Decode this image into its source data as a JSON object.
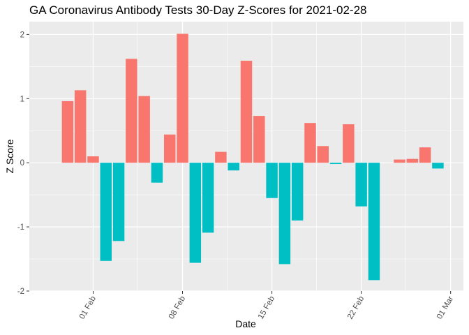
{
  "chart_data": {
    "type": "bar",
    "title": "GA Coronavirus Antibody Tests 30-Day Z-Scores for 2021-02-28",
    "xlabel": "Date",
    "ylabel": "Z Score",
    "ylim": [
      -2.0,
      2.2
    ],
    "y_ticks": [
      "-2",
      "-1",
      "0",
      "1",
      "2"
    ],
    "y_tick_values": [
      -2,
      -1,
      0,
      1,
      2
    ],
    "x_ticks": [
      "01 Feb",
      "08 Feb",
      "15 Feb",
      "22 Feb",
      "01 Mar"
    ],
    "x_tick_dates": [
      "2021-02-01",
      "2021-02-08",
      "2021-02-15",
      "2021-02-22",
      "2021-03-01"
    ],
    "xlim": [
      "2021-01-27",
      "2021-03-02"
    ],
    "grid": true,
    "legend": "none",
    "colors": {
      "positive": "#F8766D",
      "negative": "#00BFC4",
      "panel": "#EBEBEB",
      "grid": "#FFFFFF"
    },
    "x": [
      "2021-01-30",
      "2021-01-31",
      "2021-02-01",
      "2021-02-02",
      "2021-02-03",
      "2021-02-04",
      "2021-02-05",
      "2021-02-06",
      "2021-02-07",
      "2021-02-08",
      "2021-02-09",
      "2021-02-10",
      "2021-02-11",
      "2021-02-12",
      "2021-02-13",
      "2021-02-14",
      "2021-02-15",
      "2021-02-16",
      "2021-02-17",
      "2021-02-18",
      "2021-02-19",
      "2021-02-20",
      "2021-02-21",
      "2021-02-22",
      "2021-02-23",
      "2021-02-24",
      "2021-02-25",
      "2021-02-26",
      "2021-02-27",
      "2021-02-28"
    ],
    "values": [
      0.96,
      1.13,
      0.1,
      -1.53,
      -1.22,
      1.62,
      1.04,
      -0.31,
      0.44,
      2.01,
      -1.56,
      -1.09,
      0.17,
      -0.12,
      1.59,
      0.73,
      -0.55,
      -1.58,
      -0.9,
      0.62,
      0.26,
      -0.02,
      0.6,
      -0.68,
      -1.83,
      0.0,
      0.05,
      0.06,
      0.24,
      -0.09
    ]
  }
}
